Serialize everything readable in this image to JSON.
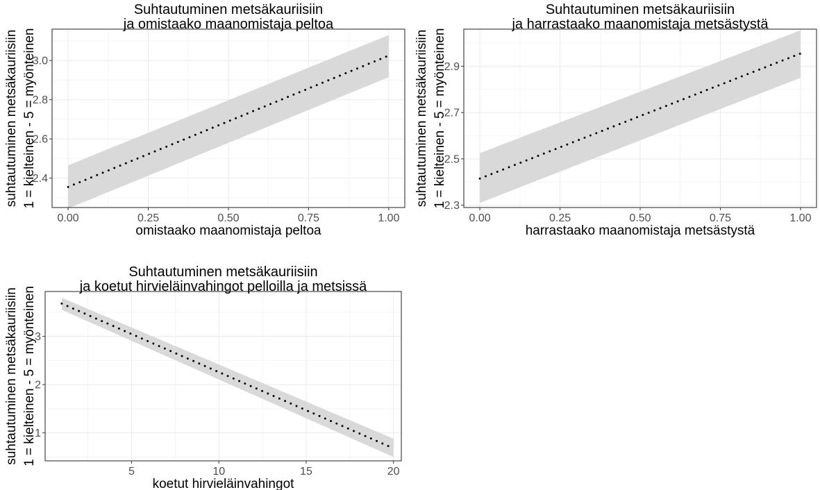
{
  "y_axis_title": [
    "suhtautuminen metsäkauriisiin",
    "1 = kielteinen - 5 = myönteinen"
  ],
  "chart_data": [
    {
      "type": "line",
      "title": [
        "Suhtautuminen metsäkauriisiin",
        "ja omistaako maanomistaja peltoa"
      ],
      "xlabel": "omistaako maanomistaja peltoa",
      "xlim": [
        -0.05,
        1.05
      ],
      "ylim": [
        2.25,
        3.16
      ],
      "xticks": [
        0.0,
        0.25,
        0.5,
        0.75,
        1.0
      ],
      "xtick_labels": [
        "0.00",
        "0.25",
        "0.50",
        "0.75",
        "1.00"
      ],
      "yticks": [
        2.4,
        2.6,
        2.8,
        3.0
      ],
      "ytick_labels": [
        "2.4",
        "2.6",
        "2.8",
        "3.0"
      ],
      "grid": true,
      "line_style": "dotted",
      "series": [
        {
          "x": [
            0.0,
            1.0
          ],
          "y": [
            2.355,
            3.025
          ],
          "ci_lower": [
            2.245,
            2.915
          ],
          "ci_upper": [
            2.465,
            3.13
          ]
        }
      ]
    },
    {
      "type": "line",
      "title": [
        "Suhtautuminen metsäkauriisiin",
        "ja harrastaako maanomistaja metsästystä"
      ],
      "xlabel": "harrastaako maanomistaja metsästystä",
      "xlim": [
        -0.05,
        1.05
      ],
      "ylim": [
        2.29,
        3.06
      ],
      "xticks": [
        0.0,
        0.25,
        0.5,
        0.75,
        1.0
      ],
      "xtick_labels": [
        "0.00",
        "0.25",
        "0.50",
        "0.75",
        "1.00"
      ],
      "yticks": [
        2.3,
        2.5,
        2.7,
        2.9
      ],
      "ytick_labels": [
        "2.3",
        "2.5",
        "2.7",
        "2.9"
      ],
      "grid": true,
      "line_style": "dotted",
      "series": [
        {
          "x": [
            0.0,
            1.0
          ],
          "y": [
            2.415,
            2.955
          ],
          "ci_lower": [
            2.31,
            2.85
          ],
          "ci_upper": [
            2.525,
            3.055
          ]
        }
      ]
    },
    {
      "type": "line",
      "title": [
        "Suhtautuminen metsäkauriisiin",
        "ja koetut hirvieläinvahingot pelloilla ja metsissä"
      ],
      "xlabel": "koetut hirvieläinvahingot",
      "xlim": [
        0.05,
        20.45
      ],
      "ylim": [
        0.42,
        3.93
      ],
      "xticks": [
        5,
        10,
        15,
        20
      ],
      "xtick_labels": [
        "5",
        "10",
        "15",
        "20"
      ],
      "yticks": [
        1,
        2,
        3
      ],
      "ytick_labels": [
        "1",
        "2",
        "3"
      ],
      "grid": true,
      "line_style": "dotted",
      "series": [
        {
          "x": [
            1,
            20
          ],
          "y": [
            3.68,
            0.68
          ],
          "ci_lower": [
            3.55,
            0.5
          ],
          "ci_upper": [
            3.8,
            0.88
          ]
        }
      ]
    }
  ]
}
